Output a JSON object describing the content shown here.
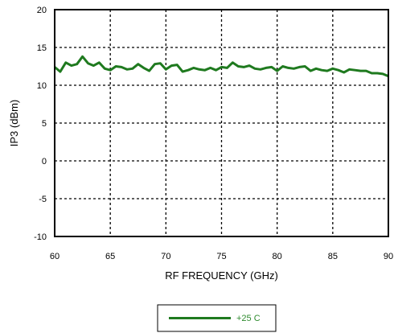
{
  "chart_data": {
    "type": "line",
    "title": "",
    "xlabel": "RF FREQUENCY (GHz)",
    "ylabel": "IP3 (dBm)",
    "xlim": [
      60,
      90
    ],
    "ylim": [
      -10,
      20
    ],
    "xticks": [
      "60",
      "65",
      "70",
      "75",
      "80",
      "85",
      "90"
    ],
    "yticks": [
      "-10",
      "-5",
      "0",
      "5",
      "10",
      "15",
      "20"
    ],
    "grid": "dotted",
    "legend_position": "bottom-center",
    "series": [
      {
        "name": "+25 C",
        "color": "#1f7a1f",
        "x": [
          60,
          60.5,
          61,
          61.5,
          62,
          62.5,
          63,
          63.5,
          64,
          64.5,
          65,
          65.5,
          66,
          66.5,
          67,
          67.5,
          68,
          68.5,
          69,
          69.5,
          70,
          70.5,
          71,
          71.5,
          72,
          72.5,
          73,
          73.5,
          74,
          74.5,
          75,
          75.5,
          76,
          76.5,
          77,
          77.5,
          78,
          78.5,
          79,
          79.5,
          80,
          80.5,
          81,
          81.5,
          82,
          82.5,
          83,
          83.5,
          84,
          84.5,
          85,
          85.5,
          86,
          86.5,
          87,
          87.5,
          88,
          88.5,
          89,
          89.5,
          90
        ],
        "y": [
          12.4,
          11.8,
          13.0,
          12.6,
          12.8,
          13.8,
          12.9,
          12.6,
          13.0,
          12.2,
          12.0,
          12.5,
          12.4,
          12.1,
          12.2,
          12.8,
          12.3,
          11.9,
          12.8,
          12.9,
          12.1,
          12.6,
          12.7,
          11.8,
          12.0,
          12.3,
          12.1,
          12.0,
          12.3,
          12.0,
          12.4,
          12.3,
          13.0,
          12.5,
          12.4,
          12.6,
          12.2,
          12.1,
          12.3,
          12.4,
          11.9,
          12.5,
          12.3,
          12.2,
          12.4,
          12.5,
          11.9,
          12.2,
          12.0,
          11.9,
          12.2,
          12.0,
          11.7,
          12.1,
          12.0,
          11.9,
          11.9,
          11.6,
          11.6,
          11.5,
          11.2
        ]
      }
    ]
  }
}
